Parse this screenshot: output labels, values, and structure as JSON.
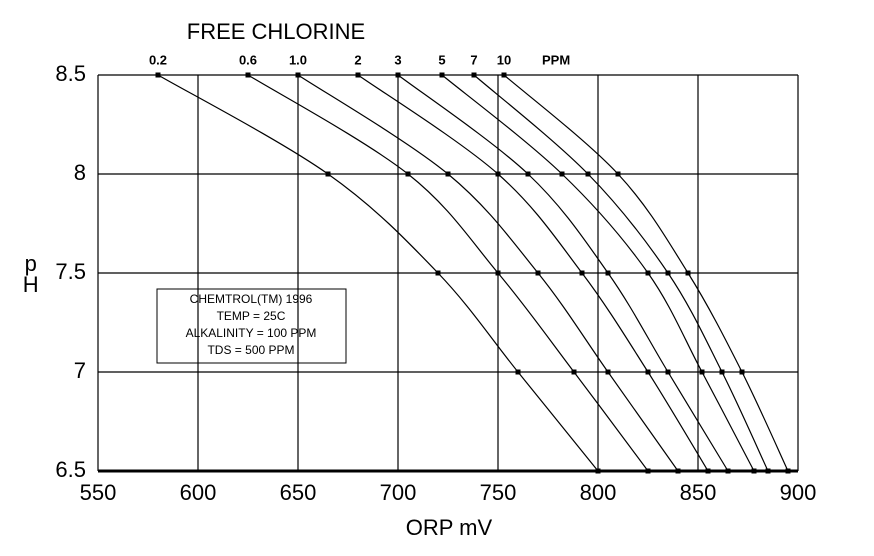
{
  "chart_data": {
    "type": "line",
    "title": "FREE CHLORINE",
    "x_label": "ORP mV",
    "y_label": "pH",
    "unit_label": "PPM",
    "annotation": [
      "CHEMTROL(TM) 1996",
      "TEMP = 25C",
      "ALKALINITY = 100 PPM",
      "TDS = 500 PPM"
    ],
    "xlim": [
      550,
      900
    ],
    "xticks": [
      550,
      600,
      650,
      700,
      750,
      800,
      850,
      900
    ],
    "ylim": [
      6.5,
      8.5
    ],
    "yticks": [
      6.5,
      7,
      7.5,
      8,
      8.5
    ],
    "grid": true,
    "color": "#000000",
    "series": [
      {
        "name": "0.2",
        "x": [
          580,
          665,
          720,
          760,
          800
        ],
        "y": [
          8.5,
          8,
          7.5,
          7,
          6.5
        ]
      },
      {
        "name": "0.6",
        "x": [
          625,
          705,
          750,
          788,
          825
        ],
        "y": [
          8.5,
          8,
          7.5,
          7,
          6.5
        ]
      },
      {
        "name": "1.0",
        "x": [
          650,
          725,
          770,
          805,
          840
        ],
        "y": [
          8.5,
          8,
          7.5,
          7,
          6.5
        ]
      },
      {
        "name": "2",
        "x": [
          680,
          750,
          792,
          825,
          855
        ],
        "y": [
          8.5,
          8,
          7.5,
          7,
          6.5
        ]
      },
      {
        "name": "3",
        "x": [
          700,
          765,
          805,
          835,
          865
        ],
        "y": [
          8.5,
          8,
          7.5,
          7,
          6.5
        ]
      },
      {
        "name": "5",
        "x": [
          722,
          782,
          825,
          852,
          878
        ],
        "y": [
          8.5,
          8,
          7.5,
          7,
          6.5
        ]
      },
      {
        "name": "7",
        "x": [
          738,
          795,
          835,
          862,
          885
        ],
        "y": [
          8.5,
          8,
          7.5,
          7,
          6.5
        ]
      },
      {
        "name": "10",
        "x": [
          753,
          810,
          845,
          872,
          895
        ],
        "y": [
          8.5,
          8,
          7.5,
          7,
          6.5
        ]
      }
    ]
  }
}
